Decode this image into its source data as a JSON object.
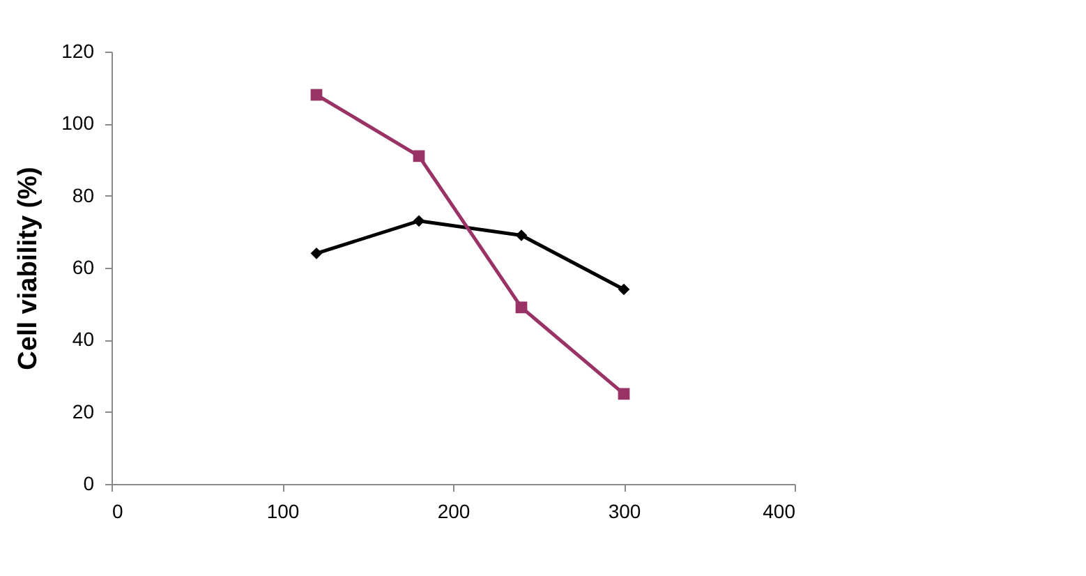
{
  "chart_data": {
    "type": "line",
    "ylabel": "Cell viability (%)",
    "xlim": [
      0,
      400
    ],
    "xticks": [
      0,
      100,
      200,
      300,
      400
    ],
    "ylim": [
      0,
      120
    ],
    "yticks": [
      0,
      20,
      40,
      60,
      80,
      100,
      120
    ],
    "grid": false,
    "line_style": "solid",
    "series": [
      {
        "color": "#000000",
        "marker": "diamond",
        "x": [
          120,
          180,
          240,
          300
        ],
        "values": [
          64,
          73,
          69,
          54
        ]
      },
      {
        "color": "#993366",
        "marker": "square",
        "x": [
          120,
          180,
          240,
          300
        ],
        "values": [
          108,
          91,
          49,
          25
        ]
      }
    ]
  }
}
